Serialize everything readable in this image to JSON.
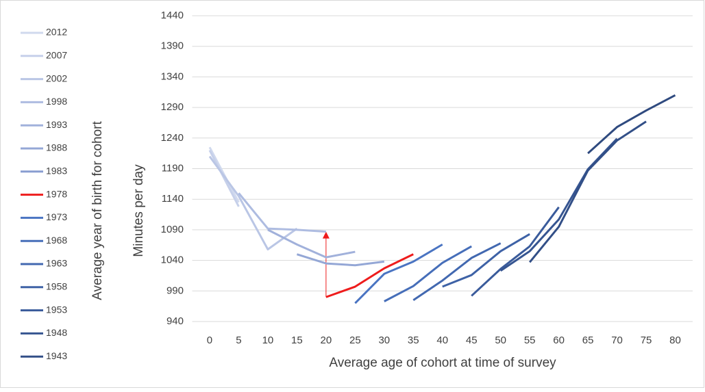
{
  "chart_data": {
    "type": "line",
    "x_label": "Average age of cohort at time of survey",
    "y_label": "Minutes per day",
    "legend_title": "Average year of birth for cohort",
    "x": [
      0,
      5,
      10,
      15,
      20,
      25,
      30,
      35,
      40,
      45,
      50,
      55,
      60,
      65,
      70,
      75,
      80
    ],
    "xlim": [
      -3,
      83
    ],
    "xticks": [
      0,
      5,
      10,
      15,
      20,
      25,
      30,
      35,
      40,
      45,
      50,
      55,
      60,
      65,
      70,
      75,
      80
    ],
    "ylim": [
      940,
      1440
    ],
    "yticks": [
      940,
      990,
      1040,
      1090,
      1140,
      1190,
      1240,
      1290,
      1340,
      1390,
      1440
    ],
    "grid": true,
    "legend": "left",
    "series": [
      {
        "name": "2012",
        "color": "#d0d9ee",
        "values": [
          1225,
          1135,
          null,
          null,
          null,
          null,
          null,
          null,
          null,
          null,
          null,
          null,
          null,
          null,
          null,
          null,
          null
        ]
      },
      {
        "name": "2007",
        "color": "#c6d0ea",
        "values": [
          1220,
          1128,
          null,
          null,
          null,
          null,
          null,
          null,
          null,
          null,
          null,
          null,
          null,
          null,
          null,
          null,
          null
        ]
      },
      {
        "name": "2002",
        "color": "#bac6e5",
        "values": [
          1210,
          1145,
          1058,
          1092,
          null,
          null,
          null,
          null,
          null,
          null,
          null,
          null,
          null,
          null,
          null,
          null,
          null
        ]
      },
      {
        "name": "1998",
        "color": "#aebce1",
        "values": [
          null,
          1150,
          1092,
          1090,
          1087,
          null,
          null,
          null,
          null,
          null,
          null,
          null,
          null,
          null,
          null,
          null,
          null
        ]
      },
      {
        "name": "1993",
        "color": "#a1b1db",
        "values": [
          null,
          null,
          1090,
          1066,
          1045,
          1054,
          null,
          null,
          null,
          null,
          null,
          null,
          null,
          null,
          null,
          null,
          null
        ]
      },
      {
        "name": "1988",
        "color": "#94a7d6",
        "values": [
          null,
          null,
          null,
          1050,
          1035,
          1032,
          1038,
          null,
          null,
          null,
          null,
          null,
          null,
          null,
          null,
          null,
          null
        ]
      },
      {
        "name": "1983",
        "color": "#889dd1",
        "values": [
          null,
          null,
          null,
          null,
          null,
          null,
          null,
          null,
          null,
          null,
          null,
          null,
          null,
          null,
          null,
          null,
          null
        ]
      },
      {
        "name": "1978",
        "color": "#ee1c1c",
        "values": [
          null,
          null,
          null,
          null,
          980,
          997,
          1027,
          1050,
          null,
          null,
          null,
          null,
          null,
          null,
          null,
          null,
          null
        ]
      },
      {
        "name": "1973",
        "color": "#4a74c2",
        "values": [
          null,
          null,
          null,
          null,
          null,
          970,
          1018,
          1038,
          1066,
          null,
          null,
          null,
          null,
          null,
          null,
          null,
          null
        ]
      },
      {
        "name": "1968",
        "color": "#466eb9",
        "values": [
          null,
          null,
          null,
          null,
          null,
          null,
          973,
          998,
          1036,
          1063,
          null,
          null,
          null,
          null,
          null,
          null,
          null
        ]
      },
      {
        "name": "1963",
        "color": "#4268b0",
        "values": [
          null,
          null,
          null,
          null,
          null,
          null,
          null,
          975,
          1007,
          1044,
          1068,
          null,
          null,
          null,
          null,
          null,
          null
        ]
      },
      {
        "name": "1958",
        "color": "#3e62a6",
        "values": [
          null,
          null,
          null,
          null,
          null,
          null,
          null,
          null,
          997,
          1016,
          1055,
          1083,
          null,
          null,
          null,
          null,
          null
        ]
      },
      {
        "name": "1953",
        "color": "#3a5b9b",
        "values": [
          null,
          null,
          null,
          null,
          null,
          null,
          null,
          null,
          null,
          982,
          1026,
          1063,
          1127,
          null,
          null,
          null,
          null
        ]
      },
      {
        "name": "1948",
        "color": "#365591",
        "values": [
          null,
          null,
          null,
          null,
          null,
          null,
          null,
          null,
          null,
          null,
          1023,
          1055,
          1107,
          1189,
          1239,
          null,
          null
        ]
      },
      {
        "name": "1943",
        "color": "#324f87",
        "values": [
          null,
          null,
          null,
          null,
          null,
          null,
          null,
          null,
          null,
          null,
          null,
          1037,
          1095,
          1187,
          1236,
          1267,
          null
        ]
      }
    ],
    "extra_series": {
      "color": "#2f4a7f",
      "values": [
        null,
        null,
        null,
        null,
        null,
        null,
        null,
        null,
        null,
        null,
        null,
        null,
        null,
        1215,
        1258,
        1285,
        1310
      ]
    },
    "arrow": {
      "x": 20,
      "from": 980,
      "to": 1087,
      "color": "#ee1c1c"
    }
  }
}
